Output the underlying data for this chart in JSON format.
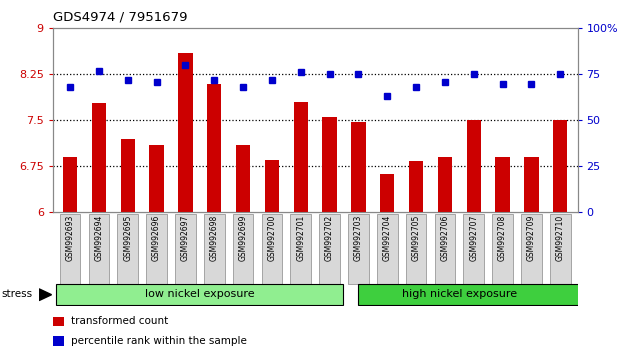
{
  "title": "GDS4974 / 7951679",
  "samples": [
    "GSM992693",
    "GSM992694",
    "GSM992695",
    "GSM992696",
    "GSM992697",
    "GSM992698",
    "GSM992699",
    "GSM992700",
    "GSM992701",
    "GSM992702",
    "GSM992703",
    "GSM992704",
    "GSM992705",
    "GSM992706",
    "GSM992707",
    "GSM992708",
    "GSM992709",
    "GSM992710"
  ],
  "bar_values": [
    6.9,
    7.78,
    7.2,
    7.1,
    8.6,
    8.1,
    7.1,
    6.85,
    7.8,
    7.55,
    7.48,
    6.62,
    6.83,
    6.9,
    7.5,
    6.9,
    6.9,
    7.5
  ],
  "percentile_values": [
    68,
    77,
    72,
    71,
    80,
    72,
    68,
    72,
    76,
    75,
    75,
    63,
    68,
    71,
    75,
    70,
    70,
    75
  ],
  "bar_color": "#cc0000",
  "dot_color": "#0000cc",
  "ylim_left": [
    6,
    9
  ],
  "ylim_right": [
    0,
    100
  ],
  "yticks_left": [
    6,
    6.75,
    7.5,
    8.25,
    9
  ],
  "yticks_right": [
    0,
    25,
    50,
    75,
    100
  ],
  "grid_values": [
    6.75,
    7.5,
    8.25
  ],
  "group1_label": "low nickel exposure",
  "group2_label": "high nickel exposure",
  "group1_color": "#90ee90",
  "group2_color": "#3ecf3e",
  "group1_count": 10,
  "group2_count": 8,
  "legend_label_bar": "transformed count",
  "legend_label_dot": "percentile rank within the sample",
  "stress_label": "stress",
  "xlabel_color": "#cc0000",
  "ylabel_right_color": "#0000cc",
  "bar_width": 0.5,
  "background_plot": "#ffffff",
  "background_xtick": "#d8d8d8"
}
